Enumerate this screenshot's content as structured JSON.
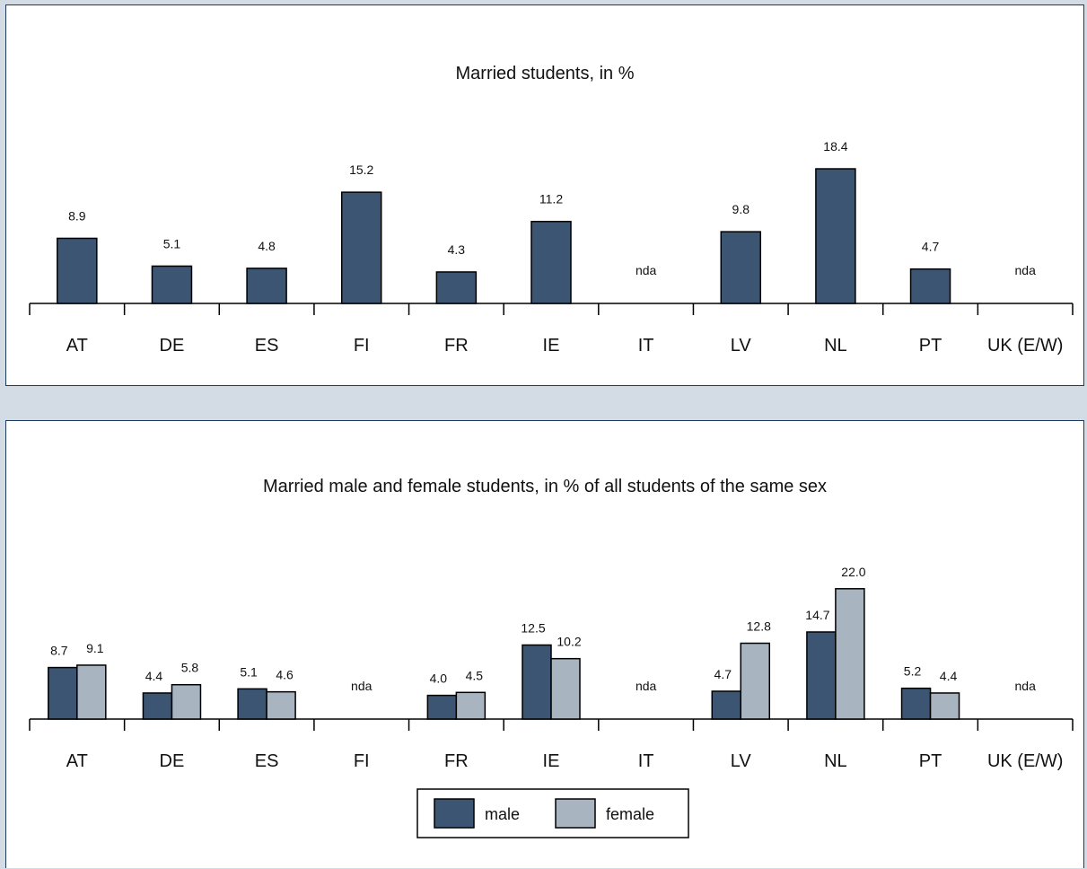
{
  "chart_data": [
    {
      "type": "bar",
      "title": "Married students, in %",
      "xlabel": "",
      "ylabel": "",
      "categories": [
        "AT",
        "DE",
        "ES",
        "FI",
        "FR",
        "IE",
        "IT",
        "LV",
        "NL",
        "PT",
        "UK (E/W)"
      ],
      "series": [
        {
          "values": [
            8.9,
            5.1,
            4.8,
            15.2,
            4.3,
            11.2,
            null,
            9.8,
            18.4,
            4.7,
            null
          ]
        }
      ],
      "missing_label": "nda",
      "grid": false,
      "colors": [
        "#3b5573"
      ]
    },
    {
      "type": "bar",
      "title": "Married male and female students, in % of all students of the same sex",
      "xlabel": "",
      "ylabel": "",
      "categories": [
        "AT",
        "DE",
        "ES",
        "FI",
        "FR",
        "IE",
        "IT",
        "LV",
        "NL",
        "PT",
        "UK (E/W)"
      ],
      "series": [
        {
          "name": "male",
          "values": [
            8.7,
            4.4,
            5.1,
            null,
            4.0,
            12.5,
            null,
            4.7,
            14.7,
            5.2,
            null
          ]
        },
        {
          "name": "female",
          "values": [
            9.1,
            5.8,
            4.6,
            null,
            4.5,
            10.2,
            null,
            12.8,
            22.0,
            4.4,
            null
          ]
        }
      ],
      "missing_label": "nda",
      "legend_position": "bottom-center",
      "grid": false,
      "colors": [
        "#3b5573",
        "#a8b4c0"
      ]
    }
  ]
}
